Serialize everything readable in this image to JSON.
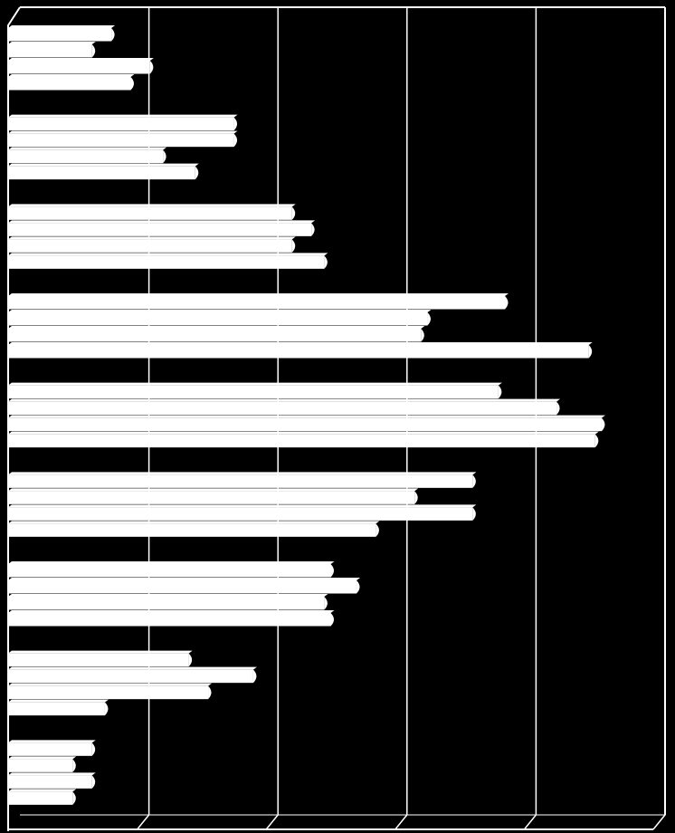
{
  "chart_data": {
    "type": "bar",
    "orientation": "horizontal",
    "title": "",
    "xlabel": "",
    "ylabel": "",
    "xlim": [
      0,
      100
    ],
    "gridlines": [
      20,
      40,
      60,
      80,
      100
    ],
    "grid": true,
    "legend": "none",
    "bar_color": "#ffffff",
    "background_color": "#000000",
    "grid_color": "#ffffff",
    "groups": [
      [
        16,
        13,
        22,
        19
      ],
      [
        35,
        35,
        24,
        29
      ],
      [
        44,
        47,
        44,
        49
      ],
      [
        77,
        65,
        64,
        90
      ],
      [
        76,
        85,
        92,
        91
      ],
      [
        72,
        63,
        72,
        57
      ],
      [
        50,
        54,
        49,
        50
      ],
      [
        28,
        38,
        31,
        15
      ],
      [
        13,
        10,
        13,
        10
      ]
    ]
  }
}
